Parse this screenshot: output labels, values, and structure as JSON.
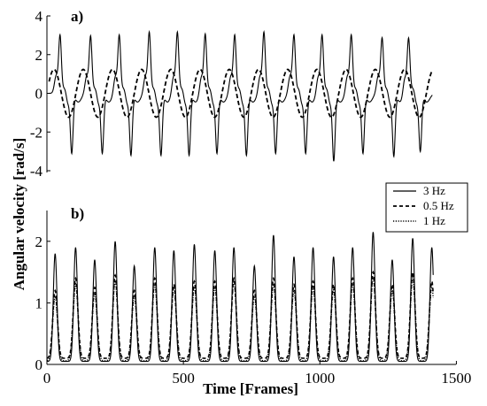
{
  "chart_data": [
    {
      "type": "line",
      "panel_label": "a)",
      "xlim": [
        0,
        1450
      ],
      "ylim": [
        -4,
        4
      ],
      "yticks": [
        4,
        2,
        0,
        -2,
        -4
      ],
      "ytick_labels": [
        "4",
        "2",
        "0",
        "-2",
        "-4"
      ],
      "xticks": [],
      "grid": false,
      "series": [
        {
          "style": "solid",
          "cycle_peaks_x": [
            48,
            160,
            265,
            375,
            478,
            580,
            688,
            795,
            905,
            1008,
            1115,
            1228,
            1325
          ],
          "cycle_peaks_y": [
            2.9,
            2.85,
            2.9,
            3.05,
            3.05,
            2.95,
            2.9,
            3.05,
            2.9,
            2.9,
            2.9,
            2.75,
            2.75
          ],
          "cycle_troughs_y": [
            -3.1,
            -3.1,
            -3.2,
            -3.2,
            -3.2,
            -3.1,
            -3.2,
            -3.1,
            -3.1,
            -3.5,
            -3.1,
            -3.25,
            -3.0
          ],
          "period_frames": 107
        },
        {
          "style": "dashed",
          "amplitude": 1.3,
          "period_frames": 107
        }
      ]
    },
    {
      "type": "line",
      "panel_label": "b)",
      "xlim": [
        0,
        1450
      ],
      "ylim": [
        0,
        2.5
      ],
      "yticks": [
        0,
        1,
        2
      ],
      "ytick_labels": [
        "0",
        "1",
        "2"
      ],
      "xticks": [
        0,
        500,
        1000,
        1500
      ],
      "xtick_labels": [
        "0",
        "500",
        "1000",
        "1500"
      ],
      "xlabel": "Time [Frames]",
      "legend_position": "top-right",
      "grid": false,
      "peaks_x": [
        30,
        105,
        175,
        250,
        320,
        395,
        465,
        540,
        615,
        685,
        760,
        830,
        905,
        975,
        1050,
        1120,
        1195,
        1265,
        1340,
        1410
      ],
      "series": [
        {
          "name": "3 Hz",
          "style": "solid",
          "peak_values": [
            1.75,
            1.85,
            1.65,
            1.95,
            1.55,
            1.85,
            1.8,
            1.9,
            1.8,
            1.85,
            1.55,
            2.05,
            1.7,
            1.85,
            1.7,
            1.85,
            2.1,
            1.65,
            2.0,
            1.85
          ]
        },
        {
          "name": "0.5 Hz",
          "style": "dashed",
          "peak_values": [
            1.1,
            1.3,
            1.15,
            1.35,
            1.1,
            1.3,
            1.2,
            1.25,
            1.25,
            1.3,
            1.1,
            1.3,
            1.2,
            1.25,
            1.2,
            1.3,
            1.4,
            1.2,
            1.4,
            1.25
          ]
        },
        {
          "name": "1 Hz",
          "style": "dotted",
          "peak_values": [
            1.05,
            1.25,
            1.1,
            1.3,
            1.05,
            1.25,
            1.2,
            1.2,
            1.2,
            1.3,
            1.05,
            1.25,
            1.15,
            1.2,
            1.15,
            1.25,
            1.35,
            1.15,
            1.35,
            1.2
          ]
        }
      ]
    }
  ],
  "shared": {
    "ylabel": "Angular velocity [rad/s]"
  }
}
